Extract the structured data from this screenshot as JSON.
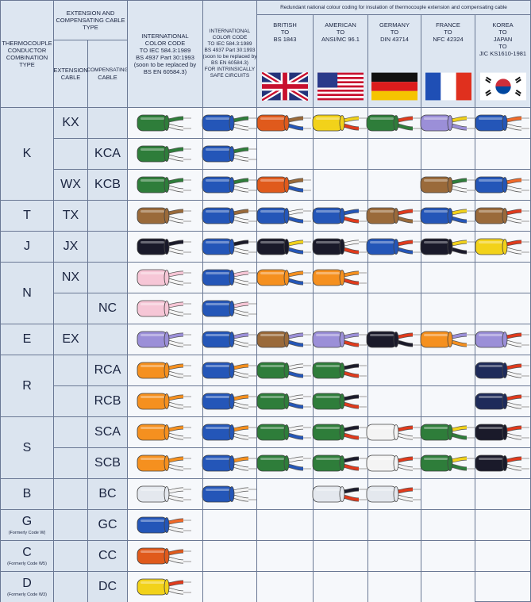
{
  "header": {
    "combination": [
      "THERMOCOUPLE",
      "CONDUCTOR",
      "COMBINATION",
      "TYPE"
    ],
    "cable_type": [
      "EXTENSION AND",
      "COMPENSATING CABLE",
      "TYPE"
    ],
    "extension": [
      "EXTENSION",
      "CABLE"
    ],
    "compensating": [
      "COMPENSATING",
      "CABLE"
    ],
    "international": [
      "INTERNATIONAL",
      "COLOR CODE",
      "TO IEC 584.3:1989",
      "BS 4937 Part 30:1993",
      "(soon to be replaced by",
      "BS EN 60584.3)"
    ],
    "intrinsically_safe": [
      "INTERNATIONAL",
      "COLOR CODE",
      "TO IEC 584.3:1989",
      "BS 4937 Part 30:1993",
      "(soon to be replaced by",
      "BS EN 60584.3)",
      "FOR INTRINSICALLY",
      "SAFE CIRCUITS"
    ],
    "redundant": "Redundant national colour coding for insulation of thermocouple extension and compensating cable",
    "nations": [
      [
        "BRITISH",
        "TO",
        "BS 1843"
      ],
      [
        "AMERICAN",
        "TO",
        "ANSI/MC 96.1"
      ],
      [
        "GERMANY",
        "TO",
        "DIN 43714"
      ],
      [
        "FRANCE",
        "TO",
        "NFC 42324"
      ],
      [
        "KOREA",
        "TO",
        "JAPAN",
        "TO",
        "JIC KS1610-1981"
      ]
    ]
  },
  "types": [
    {
      "label": "K",
      "rows": [
        {
          "extension": "KX",
          "compensating": null,
          "cables": [
            [
              "#2e7d3a",
              "#2e7d3a",
              "#f4f4f4"
            ],
            [
              "#2456b8",
              "#2e7d3a",
              "#f4f4f4"
            ],
            [
              "#e05a1c",
              "#9a6a3a",
              "#2456b8"
            ],
            [
              "#f2d21a",
              "#f2d21a",
              "#e03a1c"
            ],
            [
              "#2e7d3a",
              "#e03a1c",
              "#2e7d3a"
            ],
            [
              "#9b8fd8",
              "#f2d21a",
              "#9b8fd8"
            ],
            [
              "#2456b8",
              "#f06a2a",
              "#f4f4f4"
            ]
          ]
        },
        {
          "extension": null,
          "compensating": "KCA",
          "cables": [
            [
              "#2e7d3a",
              "#2e7d3a",
              "#f4f4f4"
            ],
            [
              "#2456b8",
              "#2e7d3a",
              "#f4f4f4"
            ],
            null,
            null,
            null,
            null,
            null
          ]
        },
        {
          "extension": "WX",
          "compensating": "KCB",
          "cables": [
            [
              "#2e7d3a",
              "#2e7d3a",
              "#f4f4f4"
            ],
            [
              "#2456b8",
              "#2e7d3a",
              "#f4f4f4"
            ],
            [
              "#e05a1c",
              "#9a6a3a",
              "#2456b8"
            ],
            null,
            null,
            [
              "#9a6a3a",
              "#2e7d3a",
              "#f4f4f4"
            ],
            [
              "#2456b8",
              "#f06a2a",
              "#f4f4f4"
            ]
          ]
        }
      ]
    },
    {
      "label": "T",
      "rows": [
        {
          "extension": "TX",
          "compensating": null,
          "cables": [
            [
              "#9a6a3a",
              "#9a6a3a",
              "#f4f4f4"
            ],
            [
              "#2456b8",
              "#9a6a3a",
              "#f4f4f4"
            ],
            [
              "#2456b8",
              "#f4f4f4",
              "#2456b8"
            ],
            [
              "#2456b8",
              "#2456b8",
              "#e03a1c"
            ],
            [
              "#9a6a3a",
              "#e03a1c",
              "#9a6a3a"
            ],
            [
              "#2456b8",
              "#f2d21a",
              "#2456b8"
            ],
            [
              "#9a6a3a",
              "#e03a1c",
              "#f4f4f4"
            ]
          ]
        }
      ]
    },
    {
      "label": "J",
      "rows": [
        {
          "extension": "JX",
          "compensating": null,
          "cables": [
            [
              "#1a1a2a",
              "#1a1a2a",
              "#f4f4f4"
            ],
            [
              "#2456b8",
              "#1a1a2a",
              "#f4f4f4"
            ],
            [
              "#1a1a2a",
              "#f2d21a",
              "#2456b8"
            ],
            [
              "#1a1a2a",
              "#f4f4f4",
              "#e03a1c"
            ],
            [
              "#2456b8",
              "#e03a1c",
              "#2456b8"
            ],
            [
              "#1a1a2a",
              "#f2d21a",
              "#1a1a2a"
            ],
            [
              "#f2d21a",
              "#e03a1c",
              "#f4f4f4"
            ]
          ]
        }
      ]
    },
    {
      "label": "N",
      "rows": [
        {
          "extension": "NX",
          "compensating": null,
          "cables": [
            [
              "#f6c6d6",
              "#f6c6d6",
              "#f4f4f4"
            ],
            [
              "#2456b8",
              "#f6c6d6",
              "#f4f4f4"
            ],
            [
              "#f5901f",
              "#f5901f",
              "#2456b8"
            ],
            [
              "#f5901f",
              "#f5901f",
              "#e03a1c"
            ],
            null,
            null,
            null
          ]
        },
        {
          "extension": null,
          "compensating": "NC",
          "cables": [
            [
              "#f6c6d6",
              "#f6c6d6",
              "#f4f4f4"
            ],
            [
              "#2456b8",
              "#f6c6d6",
              "#f4f4f4"
            ],
            null,
            null,
            null,
            null,
            null
          ]
        }
      ]
    },
    {
      "label": "E",
      "rows": [
        {
          "extension": "EX",
          "compensating": null,
          "cables": [
            [
              "#9b8fd8",
              "#9b8fd8",
              "#f4f4f4"
            ],
            [
              "#2456b8",
              "#9b8fd8",
              "#f4f4f4"
            ],
            [
              "#9a6a3a",
              "#9b8fd8",
              "#2456b8"
            ],
            [
              "#9b8fd8",
              "#9b8fd8",
              "#e03a1c"
            ],
            [
              "#1a1a2a",
              "#e03a1c",
              "#1a1a2a"
            ],
            [
              "#f5901f",
              "#9b8fd8",
              "#f5901f"
            ],
            [
              "#9b8fd8",
              "#e03a1c",
              "#f4f4f4"
            ]
          ]
        }
      ]
    },
    {
      "label": "R",
      "rows": [
        {
          "extension": null,
          "compensating": "RCA",
          "cables": [
            [
              "#f5901f",
              "#f5901f",
              "#f4f4f4"
            ],
            [
              "#2456b8",
              "#f5901f",
              "#f4f4f4"
            ],
            [
              "#2e7d3a",
              "#f4f4f4",
              "#2456b8"
            ],
            [
              "#2e7d3a",
              "#1a1a2a",
              "#e03a1c"
            ],
            null,
            null,
            [
              "#1e2b5a",
              "#e03a1c",
              "#f4f4f4"
            ]
          ]
        },
        {
          "extension": null,
          "compensating": "RCB",
          "cables": [
            [
              "#f5901f",
              "#f5901f",
              "#f4f4f4"
            ],
            [
              "#2456b8",
              "#f5901f",
              "#f4f4f4"
            ],
            [
              "#2e7d3a",
              "#f4f4f4",
              "#2456b8"
            ],
            [
              "#2e7d3a",
              "#1a1a2a",
              "#e03a1c"
            ],
            null,
            null,
            [
              "#1e2b5a",
              "#e03a1c",
              "#f4f4f4"
            ]
          ]
        }
      ]
    },
    {
      "label": "S",
      "rows": [
        {
          "extension": null,
          "compensating": "SCA",
          "cables": [
            [
              "#f5901f",
              "#f5901f",
              "#f4f4f4"
            ],
            [
              "#2456b8",
              "#f5901f",
              "#f4f4f4"
            ],
            [
              "#2e7d3a",
              "#f4f4f4",
              "#2456b8"
            ],
            [
              "#2e7d3a",
              "#1a1a2a",
              "#e03a1c"
            ],
            [
              "#f4f4f4",
              "#e03a1c",
              "#f4f4f4"
            ],
            [
              "#2e7d3a",
              "#f2d21a",
              "#2e7d3a"
            ],
            [
              "#1a1a2a",
              "#e03a1c",
              "#f4f4f4"
            ]
          ]
        },
        {
          "extension": null,
          "compensating": "SCB",
          "cables": [
            [
              "#f5901f",
              "#f5901f",
              "#f4f4f4"
            ],
            [
              "#2456b8",
              "#f5901f",
              "#f4f4f4"
            ],
            [
              "#2e7d3a",
              "#f4f4f4",
              "#2456b8"
            ],
            [
              "#2e7d3a",
              "#1a1a2a",
              "#e03a1c"
            ],
            [
              "#f4f4f4",
              "#e03a1c",
              "#f4f4f4"
            ],
            [
              "#2e7d3a",
              "#f2d21a",
              "#2e7d3a"
            ],
            [
              "#1a1a2a",
              "#e03a1c",
              "#f4f4f4"
            ]
          ]
        }
      ]
    },
    {
      "label": "B",
      "rows": [
        {
          "extension": null,
          "compensating": "BC",
          "cables": [
            [
              "#e4e8ee",
              "#f4f4f4",
              "#f4f4f4"
            ],
            [
              "#2456b8",
              "#f4f4f4",
              "#f4f4f4"
            ],
            null,
            [
              "#e4e8ee",
              "#1a1a2a",
              "#e03a1c"
            ],
            [
              "#e4e8ee",
              "#e03a1c",
              "#f4f4f4"
            ],
            null,
            null
          ]
        }
      ]
    },
    {
      "label": "G",
      "note": "(Formerly Code W)",
      "rows": [
        {
          "extension": null,
          "compensating": "GC",
          "cables": [
            [
              "#2456b8",
              "#f06a2a",
              "#f4f4f4"
            ],
            null,
            null,
            null,
            null,
            null,
            null
          ]
        }
      ]
    },
    {
      "label": "C",
      "note": "(Formerly Code W5)",
      "rows": [
        {
          "extension": null,
          "compensating": "CC",
          "cables": [
            [
              "#e05a1c",
              "#e05a1c",
              "#f4f4f4"
            ],
            null,
            null,
            null,
            null,
            null,
            null
          ]
        }
      ]
    },
    {
      "label": "D",
      "note": "(Formerly Code W3)",
      "rows": [
        {
          "extension": null,
          "compensating": "DC",
          "cables": [
            [
              "#f2d21a",
              "#e03a1c",
              "#f4f4f4"
            ],
            null,
            null,
            null,
            null,
            null,
            null
          ]
        }
      ]
    }
  ]
}
